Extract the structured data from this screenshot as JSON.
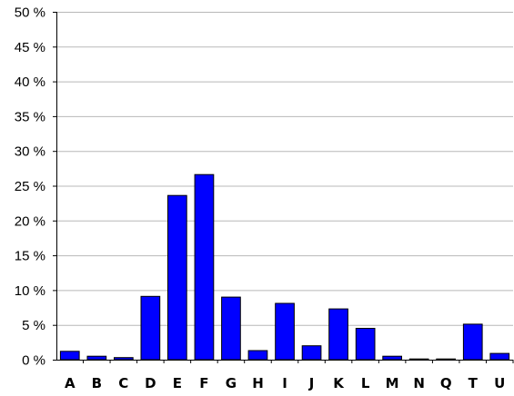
{
  "chart_data": {
    "type": "bar",
    "title": "",
    "xlabel": "",
    "ylabel": "",
    "categories": [
      "A",
      "B",
      "C",
      "D",
      "E",
      "F",
      "G",
      "H",
      "I",
      "J",
      "K",
      "L",
      "M",
      "N",
      "Q",
      "T",
      "U"
    ],
    "values": [
      1.2,
      0.5,
      0.3,
      9.1,
      23.6,
      26.6,
      9.0,
      1.3,
      8.1,
      2.0,
      7.3,
      4.5,
      0.5,
      0.1,
      0.1,
      5.1,
      0.9
    ],
    "ylim": [
      0,
      50
    ],
    "yticks": [
      0,
      5,
      10,
      15,
      20,
      25,
      30,
      35,
      40,
      45,
      50
    ],
    "ytick_labels": [
      "0 %",
      "5 %",
      "10 %",
      "15 %",
      "20 %",
      "25 %",
      "30 %",
      "35 %",
      "40 %",
      "45 %",
      "50 %"
    ],
    "grid": true,
    "bar_color": "#0000ff"
  }
}
